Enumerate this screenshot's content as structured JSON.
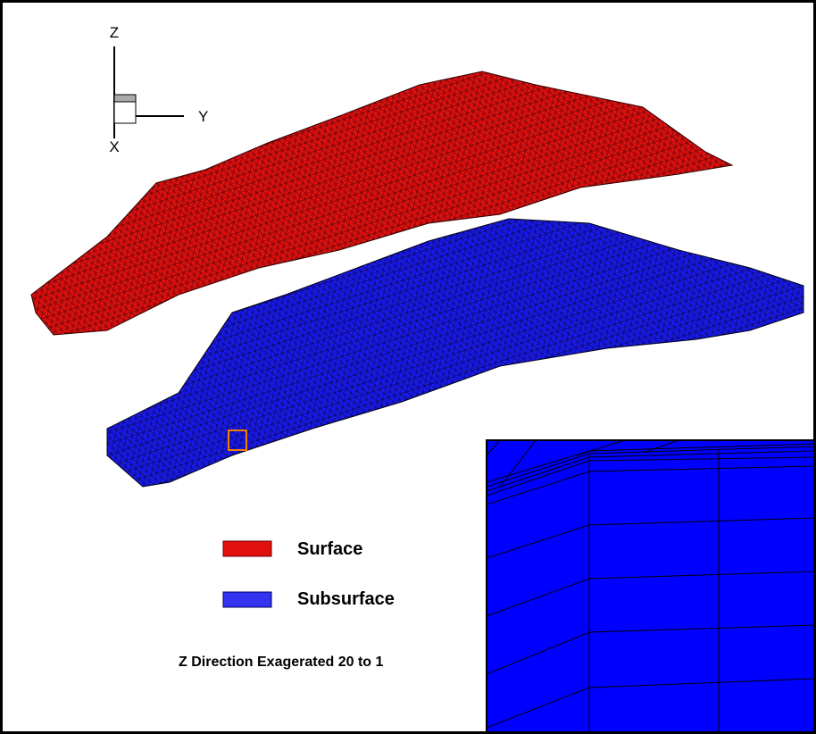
{
  "axes": {
    "z": "Z",
    "y": "Y",
    "x": "X"
  },
  "legend": [
    {
      "label": "Surface"
    },
    {
      "label": "Subsurface"
    }
  ],
  "note": "Z Direction Exagerated 20 to 1"
}
